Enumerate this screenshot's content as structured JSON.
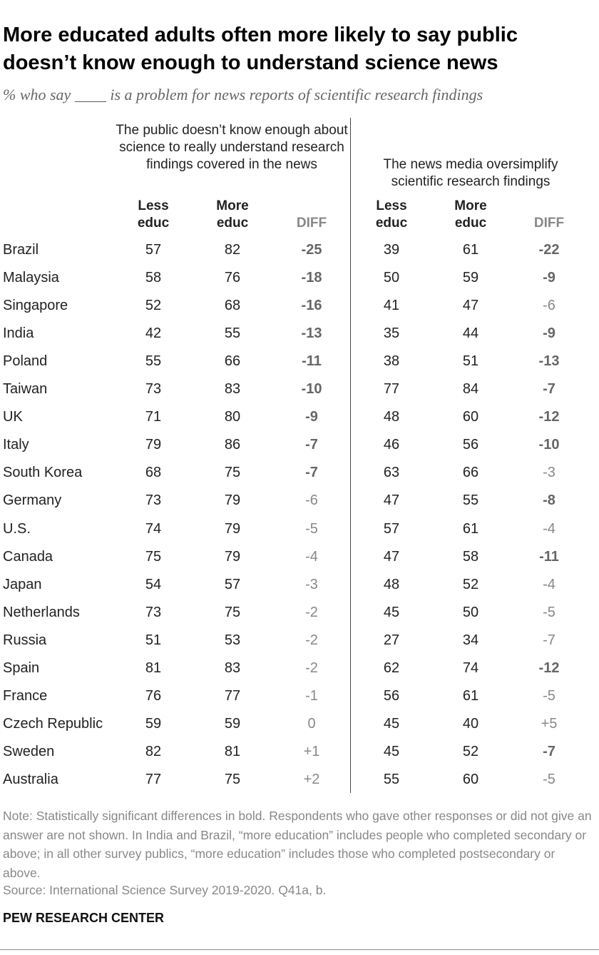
{
  "header": {
    "title": "More educated adults often more likely to say public doesn’t know enough to understand science news",
    "subtitle": "% who say ____ is a problem for news reports of scientific research findings"
  },
  "table": {
    "groups": [
      "The public doesn’t know enough about science to really understand research findings covered in the news",
      "The news media oversimplify scientific research findings"
    ],
    "columns": [
      "Less educ",
      "More educ",
      "DIFF"
    ],
    "rows": [
      {
        "country": "Brazil",
        "values": [
          57,
          82,
          "-25",
          39,
          61,
          "-22"
        ],
        "bold": [
          true,
          true
        ]
      },
      {
        "country": "Malaysia",
        "values": [
          58,
          76,
          "-18",
          50,
          59,
          "-9"
        ],
        "bold": [
          true,
          true
        ]
      },
      {
        "country": "Singapore",
        "values": [
          52,
          68,
          "-16",
          41,
          47,
          "-6"
        ],
        "bold": [
          true,
          false
        ]
      },
      {
        "country": "India",
        "values": [
          42,
          55,
          "-13",
          35,
          44,
          "-9"
        ],
        "bold": [
          true,
          true
        ]
      },
      {
        "country": "Poland",
        "values": [
          55,
          66,
          "-11",
          38,
          51,
          "-13"
        ],
        "bold": [
          true,
          true
        ]
      },
      {
        "country": "Taiwan",
        "values": [
          73,
          83,
          "-10",
          77,
          84,
          "-7"
        ],
        "bold": [
          true,
          true
        ]
      },
      {
        "country": "UK",
        "values": [
          71,
          80,
          "-9",
          48,
          60,
          "-12"
        ],
        "bold": [
          true,
          true
        ]
      },
      {
        "country": "Italy",
        "values": [
          79,
          86,
          "-7",
          46,
          56,
          "-10"
        ],
        "bold": [
          true,
          true
        ]
      },
      {
        "country": "South Korea",
        "values": [
          68,
          75,
          "-7",
          63,
          66,
          "-3"
        ],
        "bold": [
          true,
          false
        ]
      },
      {
        "country": "Germany",
        "values": [
          73,
          79,
          "-6",
          47,
          55,
          "-8"
        ],
        "bold": [
          false,
          true
        ]
      },
      {
        "country": "U.S.",
        "values": [
          74,
          79,
          "-5",
          57,
          61,
          "-4"
        ],
        "bold": [
          false,
          false
        ]
      },
      {
        "country": "Canada",
        "values": [
          75,
          79,
          "-4",
          47,
          58,
          "-11"
        ],
        "bold": [
          false,
          true
        ]
      },
      {
        "country": "Japan",
        "values": [
          54,
          57,
          "-3",
          48,
          52,
          "-4"
        ],
        "bold": [
          false,
          false
        ]
      },
      {
        "country": "Netherlands",
        "values": [
          73,
          75,
          "-2",
          45,
          50,
          "-5"
        ],
        "bold": [
          false,
          false
        ]
      },
      {
        "country": "Russia",
        "values": [
          51,
          53,
          "-2",
          27,
          34,
          "-7"
        ],
        "bold": [
          false,
          false
        ]
      },
      {
        "country": "Spain",
        "values": [
          81,
          83,
          "-2",
          62,
          74,
          "-12"
        ],
        "bold": [
          false,
          true
        ]
      },
      {
        "country": "France",
        "values": [
          76,
          77,
          "-1",
          56,
          61,
          "-5"
        ],
        "bold": [
          false,
          false
        ]
      },
      {
        "country": "Czech Republic",
        "values": [
          59,
          59,
          "0",
          45,
          40,
          "+5"
        ],
        "bold": [
          false,
          false
        ]
      },
      {
        "country": "Sweden",
        "values": [
          82,
          81,
          "+1",
          45,
          52,
          "-7"
        ],
        "bold": [
          false,
          true
        ]
      },
      {
        "country": "Australia",
        "values": [
          77,
          75,
          "+2",
          55,
          60,
          "-5"
        ],
        "bold": [
          false,
          false
        ]
      }
    ]
  },
  "footer": {
    "note": "Note: Statistically significant differences in bold. Respondents who gave other responses or did not give an answer are not shown. In India and Brazil, “more education” includes people who completed secondary or above; in all other survey publics, “more education” includes those who completed postsecondary or above.",
    "source": "Source: International Science Survey 2019-2020. Q41a, b.",
    "brand": "PEW RESEARCH CENTER"
  }
}
